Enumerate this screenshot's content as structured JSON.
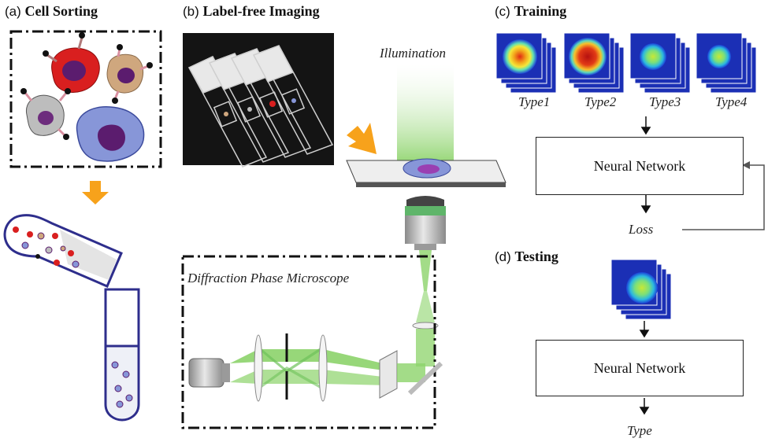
{
  "panels": {
    "a": {
      "letter": "(a)",
      "title": "Cell Sorting"
    },
    "b": {
      "letter": "(b)",
      "title": "Label-free Imaging",
      "illumination": "Illumination",
      "dpm": "Diffraction Phase Microscope"
    },
    "c": {
      "letter": "(c)",
      "title": "Training",
      "types": [
        "Type1",
        "Type2",
        "Type3",
        "Type4"
      ],
      "network": "Neural Network",
      "loss": "Loss"
    },
    "d": {
      "letter": "(d)",
      "title": "Testing",
      "network": "Neural Network",
      "output": "Type"
    }
  },
  "colors": {
    "arrow_orange": "#f7a21b",
    "tube_blue": "#2e2e8c",
    "laser_green": "#8cd36a",
    "cell_red": "#d91f1f",
    "cell_tan": "#cfa77e",
    "cell_gray": "#bdbdbd",
    "cell_blue": "#8796d8",
    "nucleus": "#5b1c6e"
  }
}
